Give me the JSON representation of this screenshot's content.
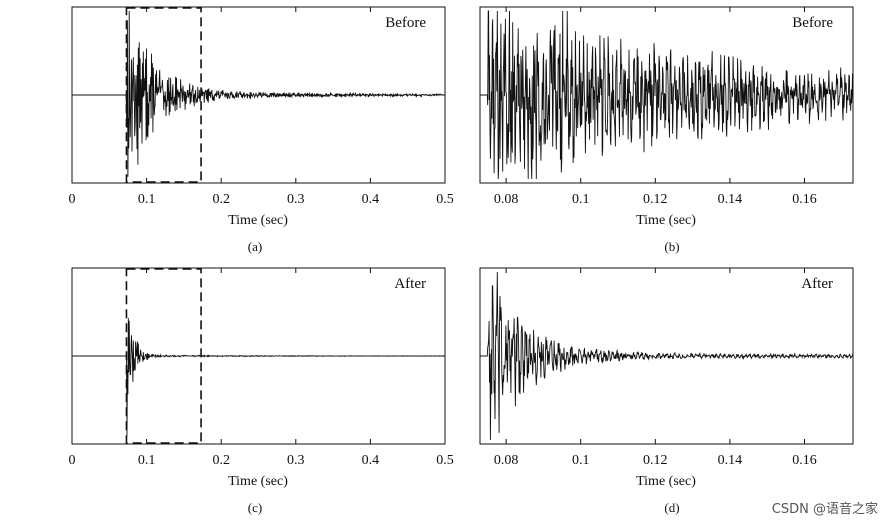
{
  "chart_data": [
    {
      "id": "a",
      "type": "line",
      "caption": "(a)",
      "tag": "Before",
      "xlabel": "Time (sec)",
      "ylabel": "",
      "xlim": [
        0,
        0.5
      ],
      "xticks": [
        0,
        0.1,
        0.2,
        0.3,
        0.4,
        0.5
      ],
      "xtick_labels": [
        "0",
        "0.1",
        "0.2",
        "0.3",
        "0.4",
        "0.5"
      ],
      "grid": false,
      "highlight_range": [
        0.073,
        0.173
      ],
      "series": [
        {
          "onset": 0.073,
          "peak": 1.0,
          "decay_time": 0.035,
          "tail_amplitude": 0.06
        }
      ]
    },
    {
      "id": "b",
      "type": "line",
      "caption": "(b)",
      "tag": "Before",
      "xlabel": "Time (sec)",
      "ylabel": "",
      "xlim": [
        0.073,
        0.173
      ],
      "xticks": [
        0.08,
        0.1,
        0.12,
        0.14,
        0.16
      ],
      "xtick_labels": [
        "0.08",
        "0.1",
        "0.12",
        "0.14",
        "0.16"
      ],
      "grid": false,
      "series": [
        {
          "onset": 0.075,
          "peak": 1.0,
          "decay_time": 0.06,
          "tail_amplitude": 0.1
        }
      ]
    },
    {
      "id": "c",
      "type": "line",
      "caption": "(c)",
      "tag": "After",
      "xlabel": "Time (sec)",
      "ylabel": "",
      "xlim": [
        0,
        0.5
      ],
      "xticks": [
        0,
        0.1,
        0.2,
        0.3,
        0.4,
        0.5
      ],
      "xtick_labels": [
        "0",
        "0.1",
        "0.2",
        "0.3",
        "0.4",
        "0.5"
      ],
      "grid": false,
      "highlight_range": [
        0.073,
        0.173
      ],
      "series": [
        {
          "onset": 0.073,
          "peak": 1.0,
          "decay_time": 0.008,
          "tail_amplitude": 0.01
        }
      ]
    },
    {
      "id": "d",
      "type": "line",
      "caption": "(d)",
      "tag": "After",
      "xlabel": "Time (sec)",
      "ylabel": "",
      "xlim": [
        0.073,
        0.173
      ],
      "xticks": [
        0.08,
        0.1,
        0.12,
        0.14,
        0.16
      ],
      "xtick_labels": [
        "0.08",
        "0.1",
        "0.12",
        "0.14",
        "0.16"
      ],
      "grid": false,
      "series": [
        {
          "onset": 0.075,
          "peak": 1.0,
          "decay_time": 0.01,
          "tail_amplitude": 0.03
        }
      ]
    }
  ],
  "watermark": "CSDN @语音之家"
}
